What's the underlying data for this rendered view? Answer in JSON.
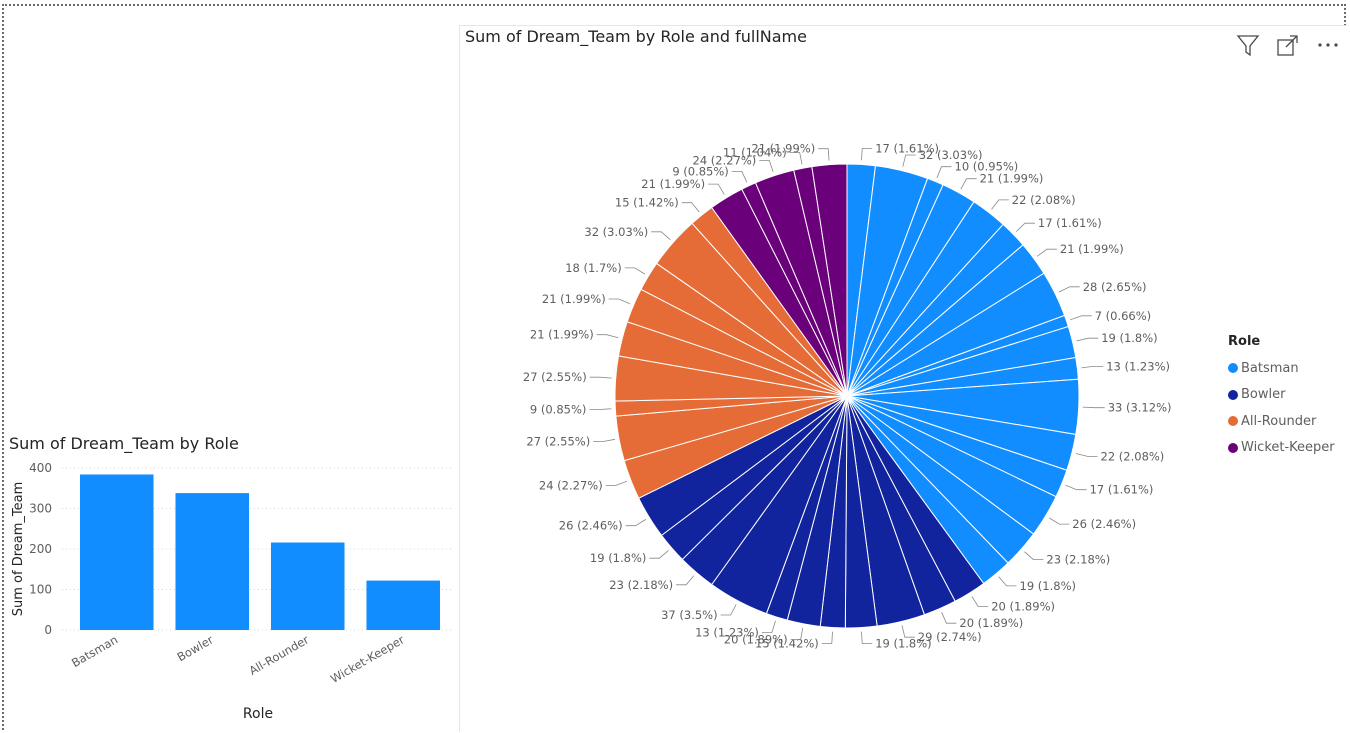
{
  "pie": {
    "title": "Sum of Dream_Team by Role and fullName",
    "legend_title": "Role"
  },
  "bar": {
    "title": "Sum of Dream_Team by Role"
  },
  "icons": [
    "filter-icon",
    "focus-mode-icon",
    "more-options-icon"
  ],
  "chart_data": [
    {
      "type": "pie",
      "title": "Sum of Dream_Team by Role and fullName",
      "legend": {
        "title": "Role",
        "placement": "right",
        "entries": [
          "Batsman",
          "Bowler",
          "All-Rounder",
          "Wicket-Keeper"
        ]
      },
      "colors": {
        "Batsman": "#118dff",
        "Bowler": "#12239e",
        "All-Rounder": "#e66c37",
        "Wicket-Keeper": "#6b007b"
      },
      "slices": [
        {
          "role": "Batsman",
          "value": 17,
          "label": "17 (1.61%)"
        },
        {
          "role": "Batsman",
          "value": 32,
          "label": "32 (3.03%)"
        },
        {
          "role": "Batsman",
          "value": 10,
          "label": "10 (0.95%)"
        },
        {
          "role": "Batsman",
          "value": 21,
          "label": "21 (1.99%)"
        },
        {
          "role": "Batsman",
          "value": 22,
          "label": "22 (2.08%)"
        },
        {
          "role": "Batsman",
          "value": 17,
          "label": "17 (1.61%)"
        },
        {
          "role": "Batsman",
          "value": 21,
          "label": "21 (1.99%)"
        },
        {
          "role": "Batsman",
          "value": 28,
          "label": "28 (2.65%)"
        },
        {
          "role": "Batsman",
          "value": 7,
          "label": "7 (0.66%)"
        },
        {
          "role": "Batsman",
          "value": 19,
          "label": "19 (1.8%)"
        },
        {
          "role": "Batsman",
          "value": 13,
          "label": "13 (1.23%)"
        },
        {
          "role": "Batsman",
          "value": 33,
          "label": "33 (3.12%)"
        },
        {
          "role": "Batsman",
          "value": 22,
          "label": "22 (2.08%)"
        },
        {
          "role": "Batsman",
          "value": 17,
          "label": "17 (1.61%)"
        },
        {
          "role": "Batsman",
          "value": 26,
          "label": "26 (2.46%)"
        },
        {
          "role": "Batsman",
          "value": 23,
          "label": "23 (2.18%)"
        },
        {
          "role": "Batsman",
          "value": 19,
          "label": "19 (1.8%)"
        },
        {
          "role": "Bowler",
          "value": 20,
          "label": "20 (1.89%)"
        },
        {
          "role": "Bowler",
          "value": 20,
          "label": "20 (1.89%)"
        },
        {
          "role": "Bowler",
          "value": 29,
          "label": "29 (2.74%)"
        },
        {
          "role": "Bowler",
          "value": 19,
          "label": "19 (1.8%)"
        },
        {
          "role": "Bowler",
          "value": 15,
          "label": "15 (1.42%)"
        },
        {
          "role": "Bowler",
          "value": 20,
          "label": "20 (1.89%)"
        },
        {
          "role": "Bowler",
          "value": 13,
          "label": "13 (1.23%)"
        },
        {
          "role": "Bowler",
          "value": 37,
          "label": "37 (3.5%)"
        },
        {
          "role": "Bowler",
          "value": 23,
          "label": "23 (2.18%)"
        },
        {
          "role": "Bowler",
          "value": 19,
          "label": "19 (1.8%)"
        },
        {
          "role": "Bowler",
          "value": 26,
          "label": "26 (2.46%)"
        },
        {
          "role": "All-Rounder",
          "value": 24,
          "label": "24 (2.27%)"
        },
        {
          "role": "All-Rounder",
          "value": 27,
          "label": "27 (2.55%)"
        },
        {
          "role": "All-Rounder",
          "value": 9,
          "label": "9 (0.85%)"
        },
        {
          "role": "All-Rounder",
          "value": 27,
          "label": "27 (2.55%)"
        },
        {
          "role": "All-Rounder",
          "value": 21,
          "label": "21 (1.99%)"
        },
        {
          "role": "All-Rounder",
          "value": 21,
          "label": "21 (1.99%)"
        },
        {
          "role": "All-Rounder",
          "value": 18,
          "label": "18 (1.7%)"
        },
        {
          "role": "All-Rounder",
          "value": 32,
          "label": "32 (3.03%)"
        },
        {
          "role": "All-Rounder",
          "value": 15,
          "label": "15 (1.42%)"
        },
        {
          "role": "Wicket-Keeper",
          "value": 21,
          "label": "21 (1.99%)"
        },
        {
          "role": "Wicket-Keeper",
          "value": 9,
          "label": "9 (0.85%)"
        },
        {
          "role": "Wicket-Keeper",
          "value": 24,
          "label": "24 (2.27%)"
        },
        {
          "role": "Wicket-Keeper",
          "value": 11,
          "label": "11 (1.04%)"
        },
        {
          "role": "Wicket-Keeper",
          "value": 21,
          "label": "21 (1.99%)"
        }
      ]
    },
    {
      "type": "bar",
      "title": "Sum of Dream_Team by Role",
      "categories": [
        "Batsman",
        "Bowler",
        "All-Rounder",
        "Wicket-Keeper"
      ],
      "values": [
        384,
        338,
        216,
        122
      ],
      "xlabel": "Role",
      "ylabel": "Sum of Dream_Team",
      "ylim": [
        0,
        400
      ],
      "yticks": [
        "0",
        "100",
        "200",
        "300",
        "400"
      ],
      "grid": true,
      "color": "#118dff"
    }
  ]
}
